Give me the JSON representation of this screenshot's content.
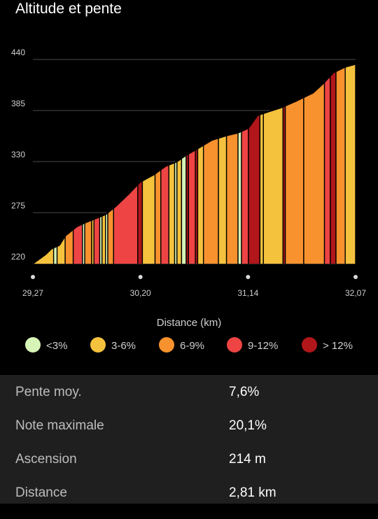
{
  "header": {
    "title": "Altitude et pente"
  },
  "chart_data": {
    "type": "area",
    "xlabel": "Distance (km)",
    "ylabel": "",
    "ylim": [
      220,
      440
    ],
    "xlim": [
      29.27,
      32.07
    ],
    "y_ticks": [
      "440",
      "385",
      "330",
      "275",
      "220"
    ],
    "x_ticks": [
      "29,27",
      "30,20",
      "31,14",
      "32,07"
    ],
    "grid": true,
    "legend_placement": "bottom",
    "legend": [
      {
        "label": "<3%",
        "color": "#d8f5b8"
      },
      {
        "label": "3-6%",
        "color": "#f5c23e"
      },
      {
        "label": "6-9%",
        "color": "#f7922e"
      },
      {
        "label": "9-12%",
        "color": "#ee4444"
      },
      {
        "label": "> 12%",
        "color": "#b0161a"
      }
    ],
    "series": [
      {
        "points": [
          [
            29.27,
            220
          ],
          [
            29.38,
            230
          ],
          [
            29.43,
            236
          ],
          [
            29.5,
            240
          ],
          [
            29.55,
            250
          ],
          [
            29.65,
            260
          ],
          [
            29.72,
            264
          ],
          [
            29.8,
            268
          ],
          [
            29.9,
            273
          ],
          [
            29.99,
            282
          ],
          [
            30.1,
            295
          ],
          [
            30.2,
            308
          ],
          [
            30.32,
            316
          ],
          [
            30.42,
            325
          ],
          [
            30.52,
            330
          ],
          [
            30.6,
            337
          ],
          [
            30.7,
            344
          ],
          [
            30.82,
            353
          ],
          [
            30.95,
            358
          ],
          [
            31.05,
            361
          ],
          [
            31.14,
            366
          ],
          [
            31.22,
            380
          ],
          [
            31.32,
            384
          ],
          [
            31.42,
            388
          ],
          [
            31.55,
            395
          ],
          [
            31.7,
            404
          ],
          [
            31.78,
            413
          ],
          [
            31.88,
            426
          ],
          [
            31.98,
            432
          ],
          [
            32.07,
            435
          ]
        ]
      }
    ],
    "bands": [
      [
        29.27,
        29.45,
        "3-6%"
      ],
      [
        29.45,
        29.48,
        "<3%"
      ],
      [
        29.48,
        29.55,
        "3-6%"
      ],
      [
        29.55,
        29.62,
        "6-9%"
      ],
      [
        29.62,
        29.7,
        "9-12%"
      ],
      [
        29.7,
        29.72,
        "<3%"
      ],
      [
        29.72,
        29.78,
        "6-9%"
      ],
      [
        29.78,
        29.8,
        "3-6%"
      ],
      [
        29.8,
        29.85,
        "9-12%"
      ],
      [
        29.85,
        29.87,
        "<3%"
      ],
      [
        29.87,
        29.9,
        "3-6%"
      ],
      [
        29.9,
        29.92,
        "<3%"
      ],
      [
        29.92,
        29.97,
        "6-9%"
      ],
      [
        29.97,
        30.18,
        "9-12%"
      ],
      [
        30.18,
        30.22,
        "> 12%"
      ],
      [
        30.22,
        30.33,
        "3-6%"
      ],
      [
        30.33,
        30.38,
        "6-9%"
      ],
      [
        30.38,
        30.45,
        "9-12%"
      ],
      [
        30.45,
        30.5,
        "3-6%"
      ],
      [
        30.5,
        30.52,
        "<3%"
      ],
      [
        30.52,
        30.56,
        "3-6%"
      ],
      [
        30.56,
        30.6,
        "<3%"
      ],
      [
        30.6,
        30.62,
        "> 12%"
      ],
      [
        30.62,
        30.68,
        "9-12%"
      ],
      [
        30.68,
        30.7,
        "> 12%"
      ],
      [
        30.7,
        30.75,
        "3-6%"
      ],
      [
        30.75,
        30.88,
        "6-9%"
      ],
      [
        30.88,
        30.95,
        "3-6%"
      ],
      [
        30.95,
        31.05,
        "6-9%"
      ],
      [
        31.05,
        31.08,
        "<3%"
      ],
      [
        31.08,
        31.14,
        "9-12%"
      ],
      [
        31.14,
        31.24,
        "> 12%"
      ],
      [
        31.24,
        31.27,
        "3-6%"
      ],
      [
        31.27,
        31.44,
        "3-6%"
      ],
      [
        31.44,
        31.46,
        "> 12%"
      ],
      [
        31.46,
        31.62,
        "6-9%"
      ],
      [
        31.62,
        31.8,
        "6-9%"
      ],
      [
        31.8,
        31.85,
        "9-12%"
      ],
      [
        31.85,
        31.9,
        "> 12%"
      ],
      [
        31.9,
        31.98,
        "6-9%"
      ],
      [
        31.98,
        32.07,
        "3-6%"
      ]
    ]
  },
  "stats": [
    {
      "label": "Pente moy.",
      "value": "7,6%"
    },
    {
      "label": "Note maximale",
      "value": "20,1%"
    },
    {
      "label": "Ascension",
      "value": "214 m"
    },
    {
      "label": "Distance",
      "value": "2,81 km"
    }
  ]
}
